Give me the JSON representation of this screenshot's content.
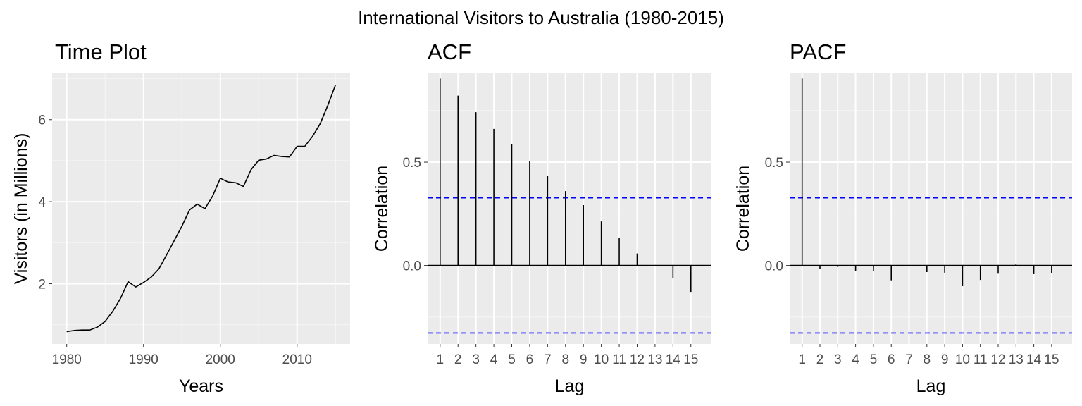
{
  "figure": {
    "title": "International Visitors to Australia (1980-2015)"
  },
  "chart_data": [
    {
      "type": "line",
      "title": "Time Plot",
      "xlabel": "Years",
      "ylabel": "Visitors (in Millions)",
      "xlim": [
        1978.1,
        2016.9
      ],
      "ylim": [
        0.53,
        7.13
      ],
      "xticks": [
        1980,
        1990,
        2000,
        2010
      ],
      "yticks": [
        2,
        4,
        6
      ],
      "grid": true,
      "x": [
        1980,
        1981,
        1982,
        1983,
        1984,
        1985,
        1986,
        1987,
        1988,
        1989,
        1990,
        1991,
        1992,
        1993,
        1994,
        1995,
        1996,
        1997,
        1998,
        1999,
        2000,
        2001,
        2002,
        2003,
        2004,
        2005,
        2006,
        2007,
        2008,
        2009,
        2010,
        2011,
        2012,
        2013,
        2014,
        2015
      ],
      "values": [
        0.83,
        0.86,
        0.87,
        0.87,
        0.94,
        1.08,
        1.33,
        1.64,
        2.05,
        1.92,
        2.03,
        2.16,
        2.36,
        2.7,
        3.05,
        3.4,
        3.8,
        3.94,
        3.83,
        4.14,
        4.57,
        4.48,
        4.46,
        4.37,
        4.78,
        5.01,
        5.04,
        5.13,
        5.1,
        5.09,
        5.35,
        5.35,
        5.59,
        5.9,
        6.35,
        6.85
      ]
    },
    {
      "type": "bar",
      "title": "ACF",
      "xlabel": "Lag",
      "ylabel": "Correlation",
      "ylim": [
        -0.38,
        0.93
      ],
      "yticks": [
        0.0,
        0.5
      ],
      "ytick_labels": [
        "0.0",
        "0.5"
      ],
      "confidence_bound": 0.327,
      "grid": true,
      "categories": [
        "1",
        "2",
        "3",
        "4",
        "5",
        "6",
        "7",
        "8",
        "9",
        "10",
        "11",
        "12",
        "13",
        "14",
        "15"
      ],
      "values": [
        0.905,
        0.822,
        0.742,
        0.661,
        0.586,
        0.505,
        0.434,
        0.36,
        0.292,
        0.213,
        0.135,
        0.058,
        -0.003,
        -0.063,
        -0.128
      ]
    },
    {
      "type": "bar",
      "title": "PACF",
      "xlabel": "Lag",
      "ylabel": "Correlation",
      "ylim": [
        -0.38,
        0.93
      ],
      "yticks": [
        0.0,
        0.5
      ],
      "ytick_labels": [
        "0.0",
        "0.5"
      ],
      "confidence_bound": 0.327,
      "grid": true,
      "categories": [
        "1",
        "2",
        "3",
        "4",
        "5",
        "6",
        "7",
        "8",
        "9",
        "10",
        "11",
        "12",
        "13",
        "14",
        "15"
      ],
      "values": [
        0.905,
        -0.015,
        -0.008,
        -0.025,
        -0.028,
        -0.072,
        -0.004,
        -0.032,
        -0.035,
        -0.1,
        -0.07,
        -0.04,
        0.006,
        -0.042,
        -0.038
      ]
    }
  ]
}
